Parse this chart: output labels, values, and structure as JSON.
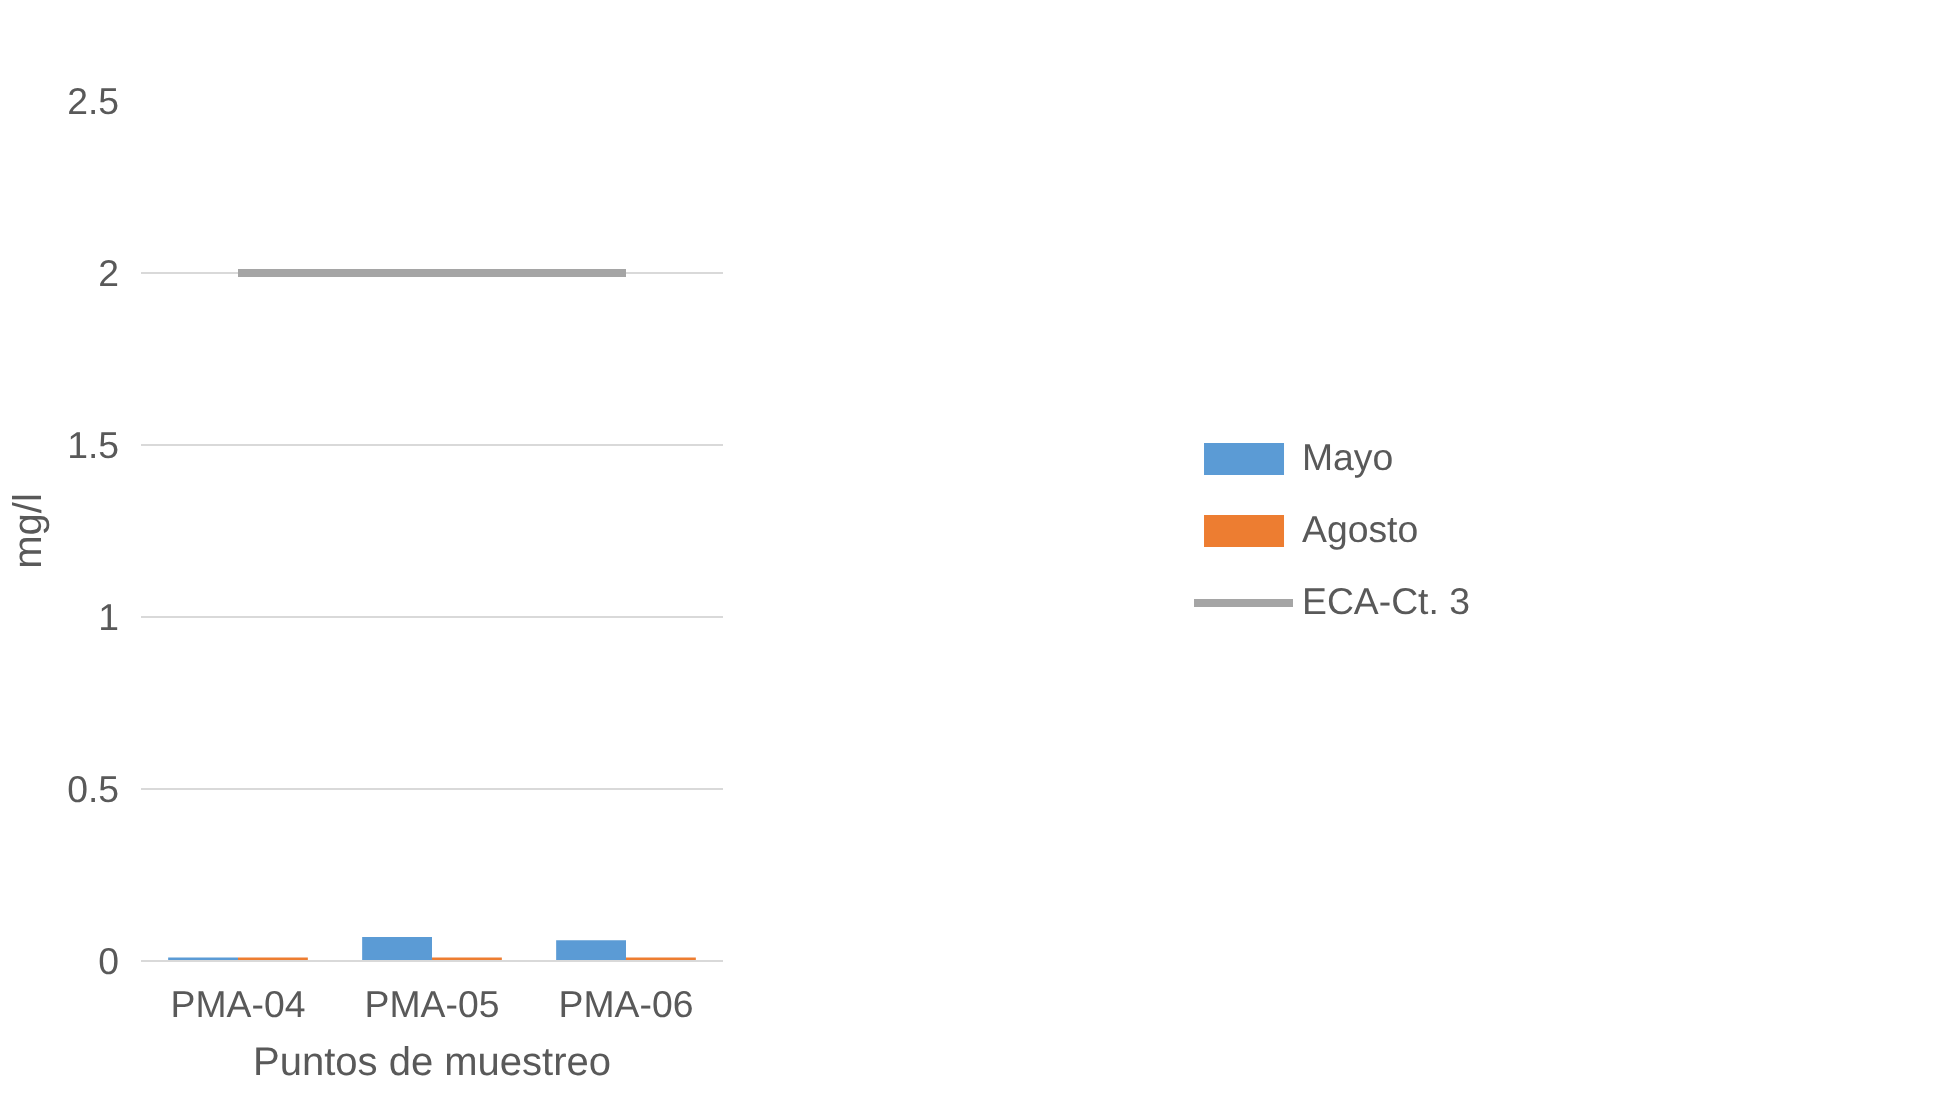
{
  "chart_data": {
    "type": "bar",
    "xlabel": "Puntos de muestreo",
    "ylabel": "mg/l",
    "categories": [
      "PMA-04",
      "PMA-05",
      "PMA-06"
    ],
    "series": [
      {
        "name": "Mayo",
        "color": "#5b9bd5",
        "values": [
          0.01,
          0.07,
          0.06
        ]
      },
      {
        "name": "Agosto",
        "color": "#ed7d31",
        "values": [
          0.01,
          0.01,
          0.01
        ]
      },
      {
        "name": "ECA-Ct. 3",
        "color": "#a5a5a5",
        "type": "line",
        "values": [
          2,
          2,
          2
        ]
      }
    ],
    "ylim": [
      0,
      2.5
    ],
    "yticks": [
      0,
      0.5,
      1,
      1.5,
      2,
      2.5
    ],
    "grid": "y",
    "legend": "right"
  }
}
